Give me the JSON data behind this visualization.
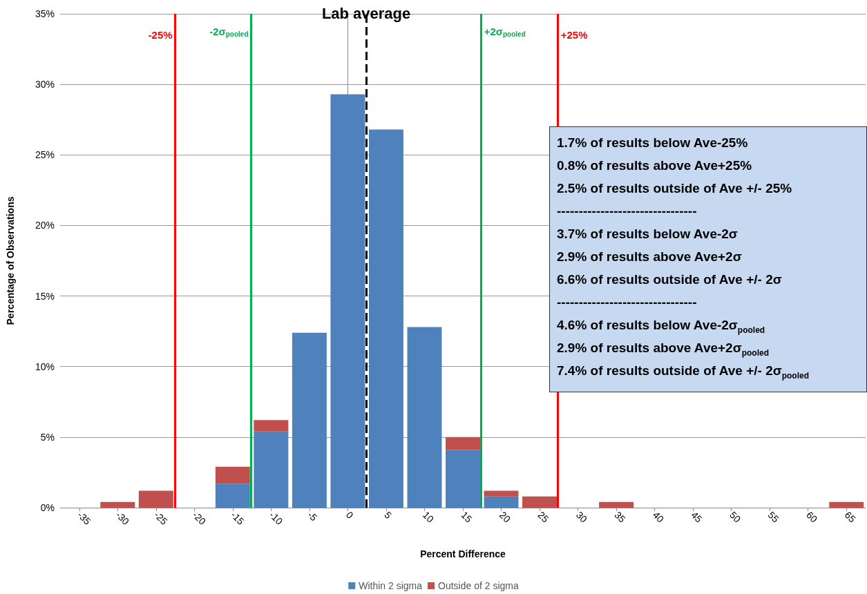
{
  "chart_data": {
    "type": "bar",
    "stacked": true,
    "xlabel": "Percent Difference",
    "ylabel": "Percentage of Observations",
    "x": [
      -35,
      -30,
      -25,
      -20,
      -15,
      -10,
      -5,
      0,
      5,
      10,
      15,
      20,
      25,
      30,
      35,
      40,
      45,
      50,
      55,
      60,
      65
    ],
    "xlim": [
      -37.5,
      67.5
    ],
    "xticks": [
      -35,
      -30,
      -25,
      -20,
      -15,
      -10,
      -5,
      0,
      5,
      10,
      15,
      20,
      25,
      30,
      35,
      40,
      45,
      50,
      55,
      60,
      65
    ],
    "ylim": [
      0,
      35
    ],
    "yticks": [
      {
        "value": 0,
        "label": "0%"
      },
      {
        "value": 5,
        "label": "5%"
      },
      {
        "value": 10,
        "label": "10%"
      },
      {
        "value": 15,
        "label": "15%"
      },
      {
        "value": 20,
        "label": "20%"
      },
      {
        "value": 25,
        "label": "25%"
      },
      {
        "value": 30,
        "label": "30%"
      },
      {
        "value": 35,
        "label": "35%"
      }
    ],
    "series": [
      {
        "name": "Within 2 sigma",
        "color": "#4f81bd",
        "values": [
          0,
          0,
          0,
          0,
          1.7,
          5.4,
          12.4,
          29.3,
          26.8,
          12.8,
          4.1,
          0.8,
          0,
          0,
          0,
          0,
          0,
          0,
          0,
          0,
          0
        ]
      },
      {
        "name": "Outside of 2 sigma",
        "color": "#c0504d",
        "values": [
          0,
          0.4,
          1.2,
          0,
          1.2,
          0.8,
          0,
          0,
          0,
          0,
          0.9,
          0.4,
          0.8,
          0,
          0.4,
          0,
          0,
          0,
          0,
          0,
          0.4
        ]
      }
    ],
    "ref_lines": [
      {
        "axis": "x",
        "value": -22.5,
        "color": "#ff0000",
        "line_style": "solid"
      },
      {
        "axis": "x",
        "value": -12.6,
        "label": "-2σ$_{pooled}$",
        "color": "#00b050",
        "line_style": "solid"
      },
      {
        "axis": "x",
        "value": 2.4,
        "label": "Lab average",
        "color": "#000000",
        "line_style": "dashed"
      },
      {
        "axis": "x",
        "value": 17.4,
        "label": "+2σ$_{pooled}$",
        "color": "#00b050",
        "line_style": "solid"
      },
      {
        "axis": "x",
        "value": 27.4,
        "color": "#ff0000",
        "line_style": "solid"
      }
    ],
    "annotations": [
      {
        "text": "-25%",
        "x": -22.5,
        "y": 33.5
      },
      {
        "text": "+25%",
        "x": 27.4,
        "y": 33.5
      },
      "1.7% of results below Ave-25%",
      "0.8% of results above Ave+25%",
      "2.5% of results outside of Ave +/- 25%",
      "--------------------------------",
      "3.7% of results below Ave-2σ",
      "2.9% of results above Ave+2σ",
      "6.6% of results outside of Ave +/- 2σ",
      "--------------------------------",
      "4.6% of results below Ave-2σ$_{pooled}$",
      "2.9% of results above Ave+2σ$_{pooled}$",
      "7.4% of results outside of Ave +/- 2σ$_{pooled}$"
    ],
    "grid": "y",
    "legend": "bottom"
  }
}
